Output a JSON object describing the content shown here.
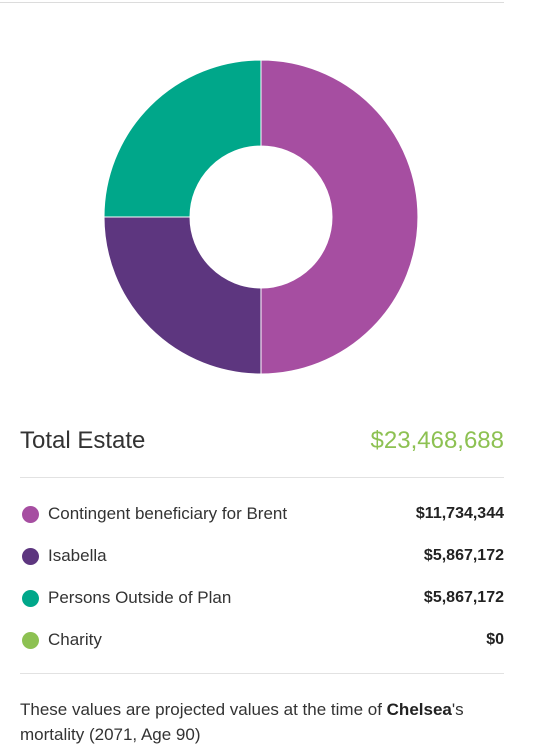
{
  "summary": {
    "total_label": "Total Estate",
    "total_value": "$23,468,688"
  },
  "chart_data": {
    "type": "pie",
    "categories": [
      "Contingent beneficiary for Brent",
      "Isabella",
      "Persons Outside of Plan",
      "Charity"
    ],
    "values": [
      11734344,
      5867172,
      5867172,
      0
    ],
    "colors": [
      "#a64ea1",
      "#5d367f",
      "#00a78a",
      "#8dc152"
    ]
  },
  "legend": [
    {
      "label": "Contingent beneficiary for Brent",
      "value": "$11,734,344",
      "color": "#a64ea1"
    },
    {
      "label": "Isabella",
      "value": "$5,867,172",
      "color": "#5d367f"
    },
    {
      "label": "Persons Outside of Plan",
      "value": "$5,867,172",
      "color": "#00a78a"
    },
    {
      "label": "Charity",
      "value": "$0",
      "color": "#8dc152"
    }
  ],
  "footnote": {
    "prefix": "These values are projected values at the time of ",
    "name": "Chelsea",
    "suffix": "'s mortality (2071, Age 90)"
  }
}
